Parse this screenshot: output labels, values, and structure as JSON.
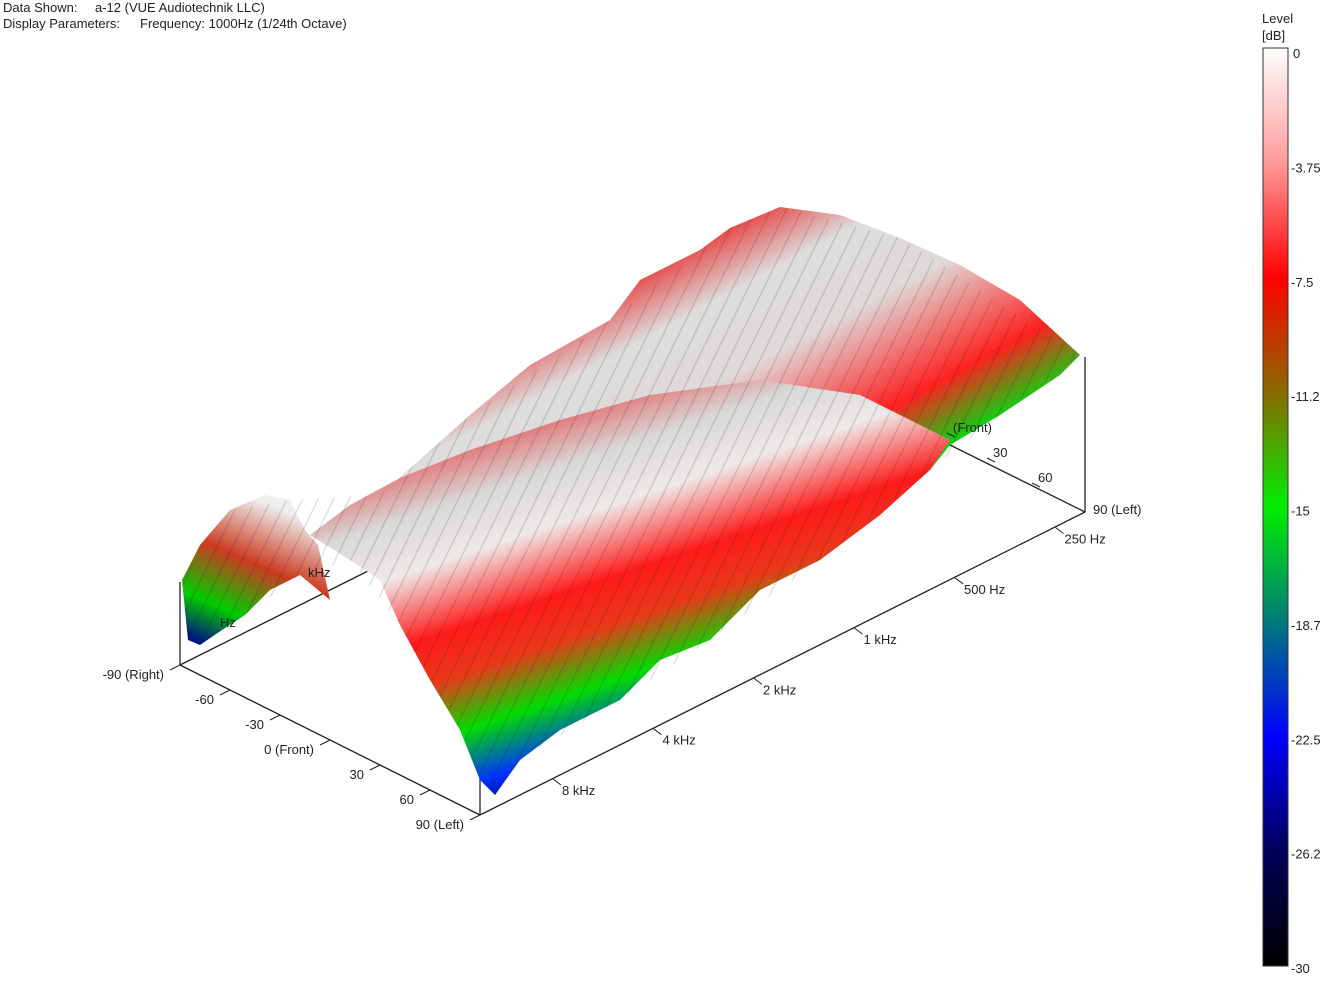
{
  "header": {
    "data_shown_label": "Data Shown:",
    "data_shown_value": "a-12 (VUE Audiotechnik LLC)",
    "display_params_label": "Display Parameters:",
    "display_params_value": "Frequency: 1000Hz (1/24th Octave)"
  },
  "chart_data": {
    "type": "surface",
    "x_axis": {
      "label": "",
      "ticks": [
        "-90 (Right)",
        "-60",
        "-30",
        "0 (Front)",
        "30",
        "60",
        "90 (Left)"
      ]
    },
    "y_axis": {
      "label": "",
      "scale": "log",
      "ticks": [
        "8 kHz",
        "4 kHz",
        "2 kHz",
        "1 kHz",
        "500 Hz",
        "250 Hz"
      ]
    },
    "back_axis_ticks": [
      "(Front)",
      "30",
      "60",
      "90 (Left)"
    ],
    "hidden_axis_labels": [
      "kHz",
      "Hz"
    ],
    "colorbar": {
      "title_line1": "Level",
      "title_line2": "[dB]",
      "range": [
        -30,
        0
      ],
      "ticks": [
        "0",
        "-3.75",
        "-7.5",
        "-11.2",
        "-15",
        "-18.7",
        "-22.5",
        "-26.2",
        "-30"
      ],
      "colors": [
        "#ffffff",
        "#ff9a9a",
        "#ff0000",
        "#8a6a00",
        "#00ee00",
        "#007a7a",
        "#0000ff",
        "#00005a",
        "#000000"
      ]
    }
  }
}
